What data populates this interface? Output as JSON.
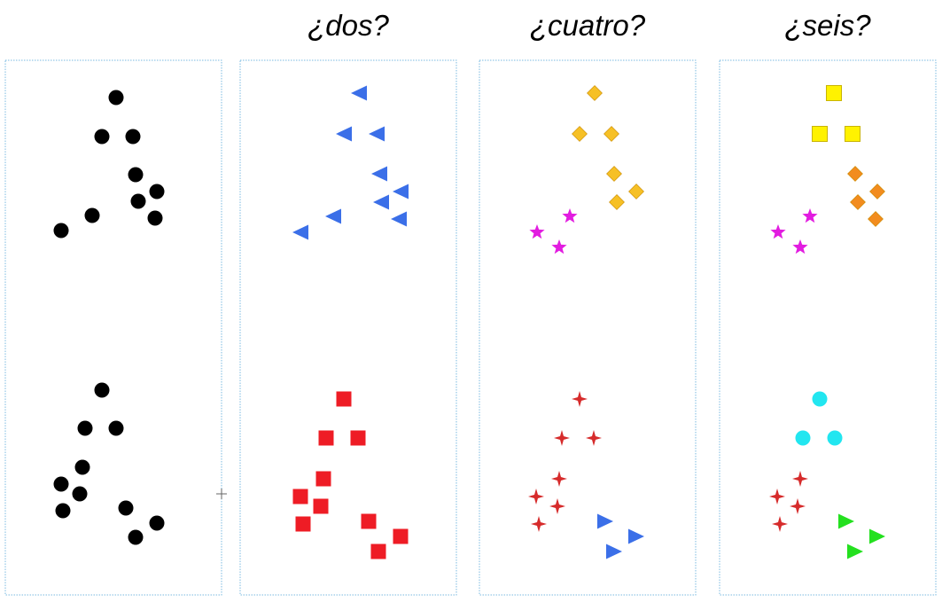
{
  "headings": [
    "",
    "¿dos?",
    "¿cuatro?",
    "¿seis?"
  ],
  "colors": {
    "black": "#000000",
    "blue": "#3b6fe8",
    "gold": "#f6c026",
    "magenta": "#e21ce0",
    "yellow": "#fff200",
    "orange": "#f28c1e",
    "red": "#ee1c25",
    "dark_red": "#d62b2b",
    "cyan": "#22e6f0",
    "green": "#24e01f",
    "panel_border": "#79b9e0"
  },
  "panels": [
    {
      "name": "panel-ungrouped",
      "groups": [
        {
          "shape": "circle-icon",
          "color": "black",
          "count": 9,
          "row": "top"
        },
        {
          "shape": "circle-icon",
          "color": "black",
          "count": 10,
          "row": "bottom"
        }
      ]
    },
    {
      "name": "panel-two",
      "groups": [
        {
          "shape": "triangle-left-icon",
          "color": "blue",
          "count": 9,
          "row": "top"
        },
        {
          "shape": "square-icon",
          "color": "red",
          "count": 10,
          "row": "bottom"
        }
      ]
    },
    {
      "name": "panel-four",
      "groups": [
        {
          "shape": "diamond-icon",
          "color": "gold",
          "count": 6,
          "row": "top"
        },
        {
          "shape": "star-icon",
          "color": "magenta",
          "count": 3,
          "row": "top"
        },
        {
          "shape": "four-point-star-icon",
          "color": "dark_red",
          "count": 7,
          "row": "bottom"
        },
        {
          "shape": "triangle-right-icon",
          "color": "blue",
          "count": 3,
          "row": "bottom"
        }
      ]
    },
    {
      "name": "panel-six",
      "groups": [
        {
          "shape": "square-icon",
          "color": "yellow",
          "count": 3,
          "row": "top"
        },
        {
          "shape": "diamond-icon",
          "color": "orange",
          "count": 4,
          "row": "top"
        },
        {
          "shape": "star-icon",
          "color": "magenta",
          "count": 3,
          "row": "top"
        },
        {
          "shape": "circle-icon",
          "color": "cyan",
          "count": 3,
          "row": "bottom"
        },
        {
          "shape": "four-point-star-icon",
          "color": "dark_red",
          "count": 4,
          "row": "bottom"
        },
        {
          "shape": "triangle-right-icon",
          "color": "green",
          "count": 3,
          "row": "bottom"
        }
      ]
    }
  ]
}
